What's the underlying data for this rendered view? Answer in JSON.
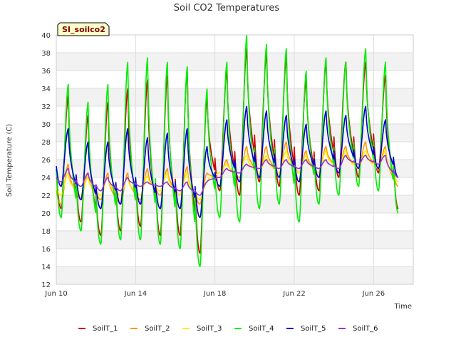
{
  "chart_data": {
    "type": "line",
    "title": "Soil CO2 Temperatures",
    "site_label": "SI_soilco2",
    "xlabel": "Time",
    "ylabel": "Soil Temperature (C)",
    "ylim": [
      12,
      40
    ],
    "yticks": [
      12,
      14,
      16,
      18,
      20,
      22,
      24,
      26,
      28,
      30,
      32,
      34,
      36,
      38,
      40
    ],
    "xlim": [
      "2024-06-10",
      "2024-06-28"
    ],
    "xticks": [
      {
        "date": "2024-06-10",
        "label": "Jun 10"
      },
      {
        "date": "2024-06-14",
        "label": "Jun 14"
      },
      {
        "date": "2024-06-18",
        "label": "Jun 18"
      },
      {
        "date": "2024-06-22",
        "label": "Jun 22"
      },
      {
        "date": "2024-06-26",
        "label": "Jun 26"
      }
    ],
    "grid": true,
    "legend_position": "bottom",
    "x_dates": [
      "2024-06-10",
      "2024-06-11",
      "2024-06-12",
      "2024-06-13",
      "2024-06-14",
      "2024-06-15",
      "2024-06-16",
      "2024-06-17",
      "2024-06-18",
      "2024-06-19",
      "2024-06-20",
      "2024-06-21",
      "2024-06-22",
      "2024-06-23",
      "2024-06-24",
      "2024-06-25",
      "2024-06-26",
      "2024-06-27"
    ],
    "series": [
      {
        "name": "SoilT_1",
        "color": "#cc0000",
        "daily_max": [
          33.2,
          31.0,
          32.5,
          34.0,
          35.0,
          35.5,
          36.0,
          33.0,
          36.0,
          38.5,
          38.0,
          37.5,
          35.0,
          37.0,
          37.0,
          37.0,
          35.5,
          34.5
        ],
        "daily_min": [
          20.5,
          19.0,
          17.5,
          18.0,
          18.5,
          17.5,
          17.5,
          15.5,
          22.5,
          22.0,
          23.5,
          23.0,
          22.0,
          22.5,
          24.0,
          24.0,
          24.5,
          20.5
        ]
      },
      {
        "name": "SoilT_2",
        "color": "#ff9900",
        "daily_max": [
          25.5,
          24.5,
          24.5,
          24.5,
          25.0,
          25.0,
          25.2,
          24.5,
          26.0,
          27.5,
          27.5,
          28.0,
          27.0,
          27.5,
          27.5,
          28.0,
          27.5,
          27.0
        ],
        "daily_min": [
          21.0,
          21.5,
          21.5,
          21.0,
          21.5,
          22.0,
          22.0,
          21.0,
          24.0,
          24.0,
          24.5,
          24.5,
          24.5,
          24.5,
          25.0,
          25.0,
          25.0,
          23.0
        ]
      },
      {
        "name": "SoilT_3",
        "color": "#ffee00",
        "daily_max": [
          24.5,
          24.0,
          24.0,
          24.0,
          24.2,
          24.5,
          24.5,
          23.5,
          25.5,
          26.5,
          26.5,
          27.0,
          26.5,
          27.0,
          27.0,
          27.0,
          27.0,
          26.5
        ],
        "daily_min": [
          22.0,
          22.0,
          22.0,
          22.0,
          22.0,
          22.5,
          22.0,
          21.5,
          24.5,
          24.5,
          24.5,
          24.5,
          24.5,
          24.5,
          25.0,
          25.0,
          25.0,
          23.5
        ]
      },
      {
        "name": "SoilT_4",
        "color": "#00ee00",
        "daily_max": [
          34.5,
          32.5,
          34.5,
          37.0,
          37.5,
          37.0,
          36.5,
          34.0,
          37.0,
          40.0,
          39.0,
          38.5,
          36.0,
          37.5,
          37.0,
          38.5,
          37.0,
          38.0
        ],
        "daily_min": [
          19.5,
          18.0,
          16.5,
          17.0,
          17.0,
          16.5,
          16.0,
          14.0,
          19.5,
          19.0,
          20.5,
          21.0,
          19.0,
          21.0,
          22.0,
          23.0,
          22.5,
          20.0
        ]
      },
      {
        "name": "SoilT_5",
        "color": "#0000cc",
        "daily_max": [
          29.5,
          28.0,
          28.0,
          29.5,
          28.5,
          29.0,
          29.5,
          27.5,
          30.5,
          32.0,
          31.5,
          31.0,
          30.0,
          31.5,
          31.0,
          32.0,
          30.5,
          29.5
        ],
        "daily_min": [
          23.0,
          21.5,
          20.5,
          21.0,
          21.0,
          20.5,
          20.5,
          19.5,
          23.0,
          23.5,
          24.0,
          24.0,
          23.5,
          24.0,
          24.5,
          25.0,
          25.0,
          24.0
        ]
      },
      {
        "name": "SoilT_6",
        "color": "#9933cc",
        "daily_max": [
          25.0,
          24.5,
          24.0,
          24.0,
          23.5,
          23.5,
          23.5,
          23.5,
          25.0,
          25.5,
          26.0,
          26.0,
          26.0,
          26.0,
          26.5,
          26.5,
          26.5,
          26.0
        ],
        "daily_min": [
          23.5,
          23.0,
          22.5,
          22.5,
          23.0,
          23.0,
          22.5,
          22.0,
          24.0,
          24.5,
          25.0,
          25.0,
          25.0,
          25.0,
          25.0,
          25.5,
          25.5,
          24.0
        ]
      }
    ]
  }
}
